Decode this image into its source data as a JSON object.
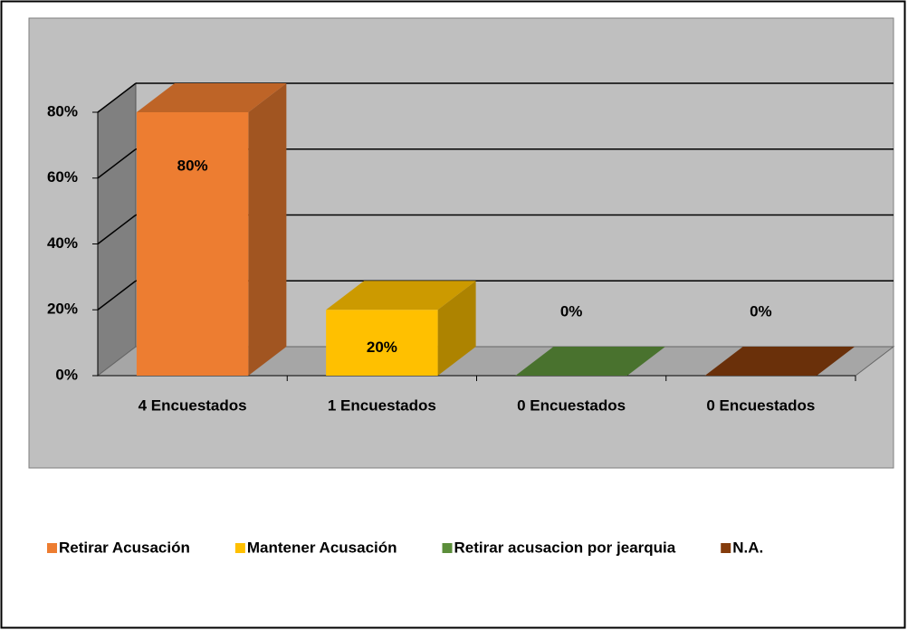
{
  "chart_data": {
    "type": "bar3d",
    "categories": [
      "4 Encuestados",
      "1 Encuestados",
      "0 Encuestados",
      "0 Encuestados"
    ],
    "values": [
      80,
      20,
      0,
      0
    ],
    "value_labels": [
      "80%",
      "20%",
      "0%",
      "0%"
    ],
    "colors": [
      "#ed7d31",
      "#ffc000",
      "#5b8e3a",
      "#843c0c"
    ],
    "legend": [
      "Retirar Acusación",
      "Mantener Acusación",
      "Retirar acusacion por jearquia",
      "N.A."
    ],
    "ylim": [
      0,
      80
    ],
    "yticks": [
      {
        "value": 0,
        "label": "0%"
      },
      {
        "value": 20,
        "label": "20%"
      },
      {
        "value": 40,
        "label": "40%"
      },
      {
        "value": 60,
        "label": "60%"
      },
      {
        "value": 80,
        "label": "80%"
      }
    ],
    "grid": true
  }
}
